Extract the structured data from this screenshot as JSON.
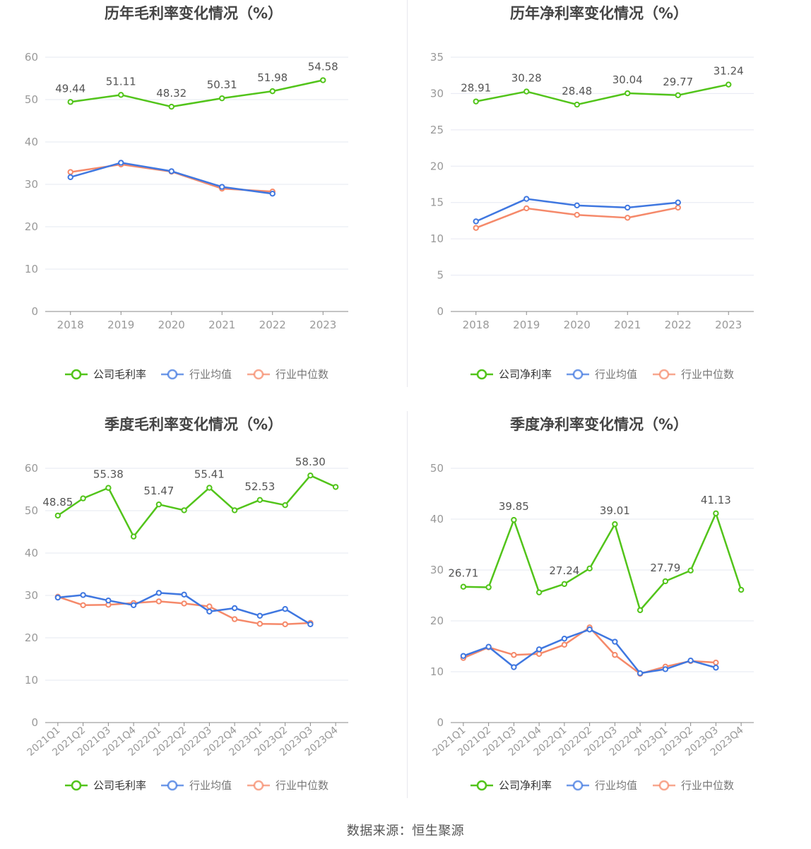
{
  "colors": {
    "company": "#52c41a",
    "avg": "#3f77e0",
    "median": "#f5896a",
    "grid": "#e6e8f2",
    "axis": "#999999",
    "text": "#555555",
    "title": "#444444"
  },
  "footer": "数据来源：恒生聚源",
  "chart_data": [
    {
      "type": "line",
      "title": "历年毛利率变化情况（%）",
      "categories": [
        "2018",
        "2019",
        "2020",
        "2021",
        "2022",
        "2023"
      ],
      "ylim": [
        0,
        60
      ],
      "yticks": [
        0,
        10,
        20,
        30,
        40,
        50,
        60
      ],
      "rotate": false,
      "series": [
        {
          "name": "公司毛利率",
          "values": [
            49.44,
            51.11,
            48.32,
            50.31,
            51.98,
            54.58
          ]
        },
        {
          "name": "行业均值",
          "values": [
            31.7,
            35.1,
            33.1,
            29.4,
            27.8,
            null
          ]
        },
        {
          "name": "行业中位数",
          "values": [
            32.9,
            34.7,
            33.0,
            29.0,
            28.3,
            null
          ]
        }
      ],
      "labels": [
        {
          "i": 0,
          "text": "49.44"
        },
        {
          "i": 1,
          "text": "51.11"
        },
        {
          "i": 2,
          "text": "48.32"
        },
        {
          "i": 3,
          "text": "50.31"
        },
        {
          "i": 4,
          "text": "51.98"
        },
        {
          "i": 5,
          "text": "54.58"
        }
      ],
      "legend": [
        "公司毛利率",
        "行业均值",
        "行业中位数"
      ]
    },
    {
      "type": "line",
      "title": "历年净利率变化情况（%）",
      "categories": [
        "2018",
        "2019",
        "2020",
        "2021",
        "2022",
        "2023"
      ],
      "ylim": [
        0,
        35
      ],
      "yticks": [
        0,
        5,
        10,
        15,
        20,
        25,
        30,
        35
      ],
      "rotate": false,
      "series": [
        {
          "name": "公司净利率",
          "values": [
            28.91,
            30.28,
            28.48,
            30.04,
            29.77,
            31.24
          ]
        },
        {
          "name": "行业均值",
          "values": [
            12.4,
            15.5,
            14.6,
            14.3,
            15.0,
            null
          ]
        },
        {
          "name": "行业中位数",
          "values": [
            11.5,
            14.2,
            13.3,
            12.9,
            14.3,
            null
          ]
        }
      ],
      "labels": [
        {
          "i": 0,
          "text": "28.91"
        },
        {
          "i": 1,
          "text": "30.28"
        },
        {
          "i": 2,
          "text": "28.48"
        },
        {
          "i": 3,
          "text": "30.04"
        },
        {
          "i": 4,
          "text": "29.77"
        },
        {
          "i": 5,
          "text": "31.24"
        }
      ],
      "legend": [
        "公司净利率",
        "行业均值",
        "行业中位数"
      ]
    },
    {
      "type": "line",
      "title": "季度毛利率变化情况（%）",
      "categories": [
        "2021Q1",
        "2021Q2",
        "2021Q3",
        "2021Q4",
        "2022Q1",
        "2022Q2",
        "2022Q3",
        "2022Q4",
        "2023Q1",
        "2023Q2",
        "2023Q3",
        "2023Q4"
      ],
      "ylim": [
        0,
        60
      ],
      "yticks": [
        0,
        10,
        20,
        30,
        40,
        50,
        60
      ],
      "rotate": true,
      "series": [
        {
          "name": "公司毛利率",
          "values": [
            48.85,
            52.9,
            55.38,
            43.9,
            51.47,
            50.1,
            55.41,
            50.1,
            52.53,
            51.3,
            58.3,
            55.6
          ]
        },
        {
          "name": "行业均值",
          "values": [
            29.5,
            30.1,
            28.8,
            27.7,
            30.6,
            30.2,
            26.2,
            27.0,
            25.2,
            26.8,
            23.2,
            null
          ]
        },
        {
          "name": "行业中位数",
          "values": [
            29.7,
            27.7,
            27.8,
            28.2,
            28.6,
            28.1,
            27.4,
            24.4,
            23.3,
            23.2,
            23.5,
            null
          ]
        }
      ],
      "labels": [
        {
          "i": 0,
          "text": "48.85"
        },
        {
          "i": 2,
          "text": "55.38"
        },
        {
          "i": 4,
          "text": "51.47"
        },
        {
          "i": 6,
          "text": "55.41"
        },
        {
          "i": 8,
          "text": "52.53"
        },
        {
          "i": 10,
          "text": "58.30"
        }
      ],
      "legend": [
        "公司毛利率",
        "行业均值",
        "行业中位数"
      ]
    },
    {
      "type": "line",
      "title": "季度净利率变化情况（%）",
      "categories": [
        "2021Q1",
        "2021Q2",
        "2021Q3",
        "2021Q4",
        "2022Q1",
        "2022Q2",
        "2022Q3",
        "2022Q4",
        "2023Q1",
        "2023Q2",
        "2023Q3",
        "2023Q4"
      ],
      "ylim": [
        0,
        50
      ],
      "yticks": [
        0,
        10,
        20,
        30,
        40,
        50
      ],
      "rotate": true,
      "series": [
        {
          "name": "公司净利率",
          "values": [
            26.71,
            26.6,
            39.85,
            25.6,
            27.24,
            30.3,
            39.01,
            22.1,
            27.79,
            29.9,
            41.13,
            26.1
          ]
        },
        {
          "name": "行业均值",
          "values": [
            13.1,
            14.9,
            10.9,
            14.4,
            16.5,
            18.3,
            15.9,
            9.7,
            10.5,
            12.2,
            10.8,
            null
          ]
        },
        {
          "name": "行业中位数",
          "values": [
            12.7,
            14.8,
            13.3,
            13.5,
            15.3,
            18.7,
            13.3,
            9.6,
            11.0,
            12.1,
            11.8,
            null
          ]
        }
      ],
      "labels": [
        {
          "i": 0,
          "text": "26.71"
        },
        {
          "i": 2,
          "text": "39.85"
        },
        {
          "i": 4,
          "text": "27.24"
        },
        {
          "i": 6,
          "text": "39.01"
        },
        {
          "i": 8,
          "text": "27.79"
        },
        {
          "i": 10,
          "text": "41.13"
        }
      ],
      "legend": [
        "公司净利率",
        "行业均值",
        "行业中位数"
      ]
    }
  ]
}
